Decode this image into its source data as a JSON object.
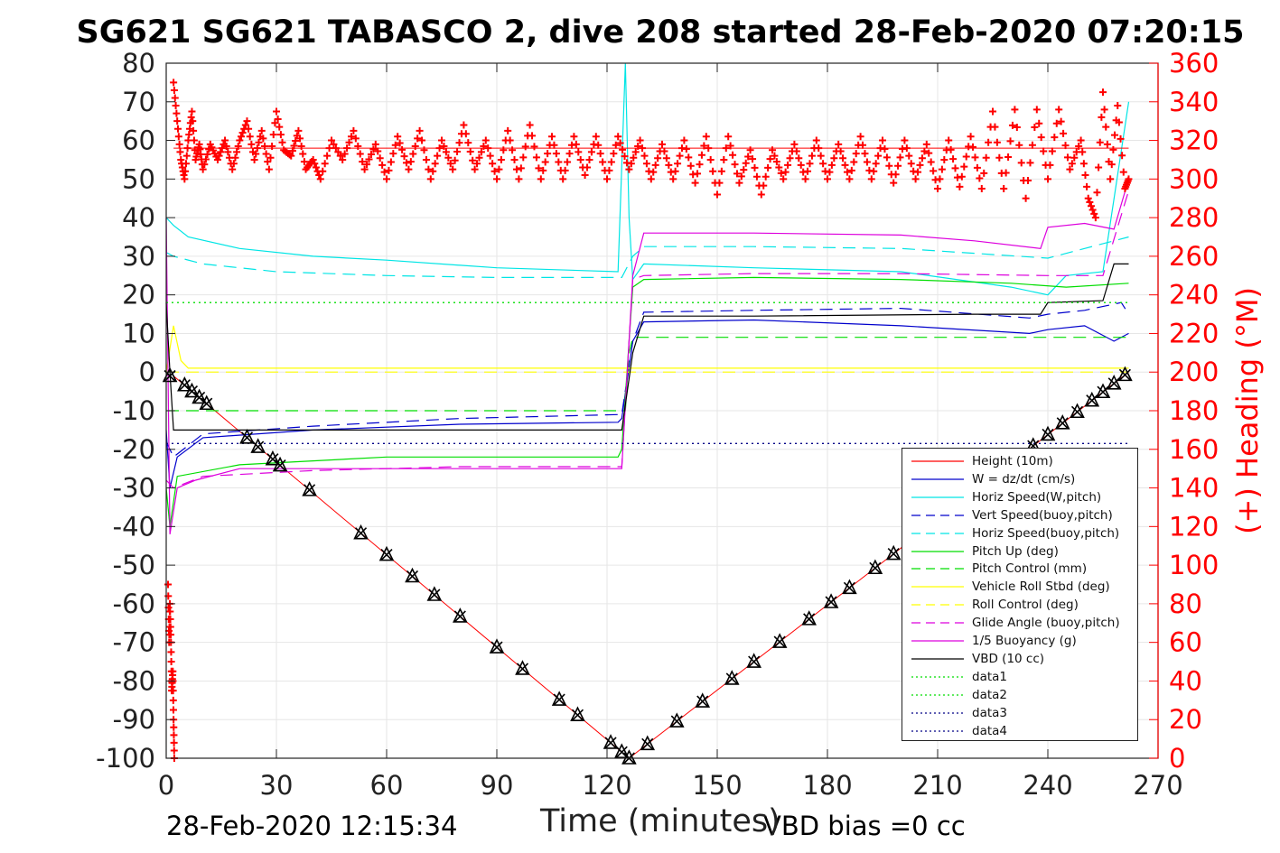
{
  "title": "SG621 SG621 TABASCO 2, dive 208 started 28-Feb-2020 07:20:15",
  "footer_left": "28-Feb-2020 12:15:34",
  "footer_right": "VBD bias =0 cc",
  "colors": {
    "red": "#ff0000",
    "blue": "#0000cc",
    "cyan": "#00e5e5",
    "green": "#00dd00",
    "yellow": "#ffff00",
    "magenta": "#dd00dd",
    "black": "#000000",
    "dark_blue": "#000088"
  },
  "chart_data": {
    "type": "line",
    "xlabel": "Time (minutes)",
    "ylabel": "",
    "y2label": "(+) Heading (°M)",
    "xlim": [
      0,
      270
    ],
    "ylim": [
      -100,
      80
    ],
    "y2lim": [
      0,
      360
    ],
    "xticks": [
      0,
      30,
      60,
      90,
      120,
      150,
      180,
      210,
      240,
      270
    ],
    "yticks": [
      -100,
      -90,
      -80,
      -70,
      -60,
      -50,
      -40,
      -30,
      -20,
      -10,
      0,
      10,
      20,
      30,
      40,
      50,
      60,
      70,
      80
    ],
    "y2ticks": [
      0,
      20,
      40,
      60,
      80,
      100,
      120,
      140,
      160,
      180,
      200,
      220,
      240,
      260,
      280,
      300,
      320,
      340,
      360
    ],
    "grid": true,
    "legend_position": "bottom-right",
    "legend": [
      {
        "label": "Height (10m)",
        "color": "#ff0000",
        "style": "solid"
      },
      {
        "label": "W = dz/dt (cm/s)",
        "color": "#0000cc",
        "style": "solid"
      },
      {
        "label": "Horiz Speed(W,pitch)",
        "color": "#00e5e5",
        "style": "solid"
      },
      {
        "label": "Vert Speed(buoy,pitch)",
        "color": "#0000cc",
        "style": "dashed"
      },
      {
        "label": "Horiz Speed(buoy,pitch)",
        "color": "#00e5e5",
        "style": "dashed"
      },
      {
        "label": "Pitch Up (deg)",
        "color": "#00dd00",
        "style": "solid"
      },
      {
        "label": "Pitch Control (mm)",
        "color": "#00dd00",
        "style": "dashed"
      },
      {
        "label": "Vehicle Roll Stbd (deg)",
        "color": "#ffff00",
        "style": "solid"
      },
      {
        "label": "Roll Control (deg)",
        "color": "#ffff00",
        "style": "dashed"
      },
      {
        "label": "Glide Angle (buoy,pitch)",
        "color": "#dd00dd",
        "style": "dashed"
      },
      {
        "label": "1/5 Buoyancy (g)",
        "color": "#dd00dd",
        "style": "solid"
      },
      {
        "label": "VBD (10 cc)",
        "color": "#000000",
        "style": "solid"
      },
      {
        "label": "data1",
        "color": "#00dd00",
        "style": "dotted"
      },
      {
        "label": "data2",
        "color": "#00dd00",
        "style": "dotted"
      },
      {
        "label": "data3",
        "color": "#000088",
        "style": "dotted"
      },
      {
        "label": "data4",
        "color": "#000088",
        "style": "dotted"
      }
    ],
    "series": [
      {
        "name": "Height (10m)",
        "axis": "left",
        "x": [
          2,
          126,
          262
        ],
        "y": [
          -1,
          -100,
          0
        ]
      },
      {
        "name": "W = dz/dt (cm/s)",
        "axis": "left",
        "x": [
          0,
          1,
          3,
          10,
          40,
          80,
          123,
          124,
          127,
          130,
          160,
          200,
          235,
          240,
          250,
          258,
          262
        ],
        "y": [
          -15,
          -30,
          -22,
          -17,
          -15,
          -13.5,
          -13,
          -12,
          8,
          13,
          13.5,
          12,
          10,
          11,
          12,
          8,
          10
        ]
      },
      {
        "name": "Horiz Speed(W,pitch)",
        "axis": "left",
        "x": [
          0,
          2,
          6,
          20,
          40,
          60,
          90,
          123,
          125,
          126,
          127,
          130,
          160,
          200,
          230,
          240,
          245,
          255,
          262
        ],
        "y": [
          40,
          38,
          35,
          32,
          30,
          29,
          27,
          26,
          80,
          40,
          24,
          28,
          27,
          26,
          22,
          20,
          25,
          26,
          70
        ]
      },
      {
        "name": "Vert Speed(buoy,pitch)",
        "axis": "left",
        "x": [
          0,
          2,
          10,
          40,
          80,
          123,
          124,
          127,
          130,
          160,
          200,
          235,
          240,
          250,
          260,
          262
        ],
        "y": [
          -18,
          -22,
          -16,
          -14,
          -12,
          -11,
          -11,
          8,
          15.5,
          16,
          16.5,
          14,
          15,
          16,
          18,
          15
        ]
      },
      {
        "name": "Horiz Speed(buoy,pitch)",
        "axis": "left",
        "x": [
          0,
          2,
          10,
          30,
          60,
          90,
          123,
          124,
          127,
          130,
          160,
          200,
          240,
          250,
          262
        ],
        "y": [
          31,
          30,
          28,
          26,
          25,
          24.5,
          24.5,
          24.5,
          30,
          32.5,
          32.5,
          32,
          29.5,
          32,
          35
        ]
      },
      {
        "name": "Pitch Up (deg)",
        "axis": "left",
        "x": [
          0,
          1,
          3,
          20,
          60,
          90,
          123,
          124,
          127,
          130,
          160,
          200,
          230,
          245,
          262
        ],
        "y": [
          -30,
          -40,
          -27,
          -24,
          -22,
          -22,
          -22,
          -20,
          22,
          24,
          24.5,
          24,
          23,
          22,
          23
        ]
      },
      {
        "name": "Pitch Control (mm)",
        "axis": "left",
        "x": [
          0,
          5,
          60,
          123,
          124,
          125,
          126,
          127,
          130,
          160,
          200,
          262
        ],
        "y": [
          -10,
          -10,
          -10,
          -10,
          -10,
          -10,
          5,
          9,
          9,
          9,
          9,
          9
        ]
      },
      {
        "name": "Vehicle Roll Stbd (deg)",
        "axis": "left",
        "x": [
          0,
          2,
          4,
          6,
          20,
          40,
          60,
          90,
          120,
          125,
          130,
          160,
          200,
          240,
          262
        ],
        "y": [
          0,
          12,
          3,
          1,
          1,
          1,
          1,
          1,
          1,
          1,
          1,
          1,
          1,
          1,
          1
        ]
      },
      {
        "name": "Roll Control (deg)",
        "axis": "left",
        "x": [
          0,
          262
        ],
        "y": [
          0,
          0
        ]
      },
      {
        "name": "Glide Angle (buoy,pitch)",
        "axis": "left",
        "x": [
          0,
          2,
          10,
          40,
          80,
          123,
          124,
          127,
          130,
          160,
          200,
          240,
          255,
          262
        ],
        "y": [
          -28,
          -30,
          -27,
          -25.5,
          -24.5,
          -24.5,
          -24.5,
          24,
          25,
          25.5,
          25.5,
          25,
          25,
          47
        ]
      },
      {
        "name": "1/5 Buoyancy (g)",
        "axis": "left",
        "x": [
          0,
          1,
          3,
          8,
          20,
          60,
          123,
          124,
          127,
          130,
          160,
          200,
          220,
          238,
          240,
          250,
          258,
          262
        ],
        "y": [
          40,
          -42,
          -30,
          -28,
          -25,
          -25,
          -25,
          -25,
          25,
          36,
          36,
          35.5,
          34,
          32,
          37.5,
          38.5,
          37,
          50
        ]
      },
      {
        "name": "VBD (10 cc)",
        "axis": "left",
        "x": [
          0,
          1,
          2,
          60,
          123,
          124,
          127,
          130,
          160,
          220,
          238,
          240,
          255,
          258,
          262
        ],
        "y": [
          18,
          0,
          -15,
          -15,
          -15,
          -15,
          5,
          14.5,
          14.5,
          15,
          15,
          18,
          18.5,
          28,
          28
        ]
      },
      {
        "name": "data1",
        "axis": "left",
        "x": [
          0,
          262
        ],
        "y": [
          18,
          18
        ]
      },
      {
        "name": "data2",
        "axis": "left",
        "x": [
          0,
          262
        ],
        "y": [
          18,
          18
        ]
      },
      {
        "name": "data3",
        "axis": "left",
        "x": [
          0,
          262
        ],
        "y": [
          -18.5,
          -18.5
        ]
      },
      {
        "name": "data4",
        "axis": "left",
        "x": [
          0,
          262
        ],
        "y": [
          -18.5,
          -18.5
        ]
      },
      {
        "name": "(+) Heading (°M)",
        "axis": "right",
        "marker": "+",
        "mean": 316,
        "x": [
          2,
          3,
          4,
          5,
          6,
          7,
          8,
          9,
          10,
          12,
          14,
          16,
          18,
          20,
          22,
          24,
          26,
          28,
          30,
          32,
          34,
          36,
          38,
          40,
          42,
          45,
          48,
          51,
          54,
          57,
          60,
          63,
          66,
          69,
          72,
          75,
          78,
          81,
          84,
          87,
          90,
          93,
          96,
          99,
          102,
          105,
          108,
          111,
          114,
          117,
          120,
          123,
          126,
          129,
          132,
          135,
          138,
          141,
          144,
          147,
          150,
          153,
          156,
          159,
          162,
          165,
          168,
          171,
          174,
          177,
          180,
          183,
          186,
          189,
          192,
          195,
          198,
          201,
          204,
          207,
          210,
          213,
          216,
          219,
          222,
          225,
          228,
          231,
          234,
          237,
          240,
          243,
          246,
          249,
          251,
          253,
          255,
          257,
          259,
          261,
          262
        ],
        "y": [
          350,
          330,
          310,
          300,
          320,
          335,
          310,
          318,
          305,
          318,
          310,
          320,
          305,
          320,
          330,
          310,
          325,
          305,
          335,
          315,
          312,
          325,
          305,
          310,
          300,
          320,
          310,
          325,
          305,
          318,
          300,
          322,
          305,
          325,
          300,
          320,
          305,
          328,
          305,
          320,
          300,
          325,
          300,
          328,
          300,
          322,
          300,
          322,
          302,
          322,
          300,
          322,
          305,
          320,
          300,
          318,
          300,
          320,
          298,
          322,
          292,
          322,
          298,
          315,
          292,
          315,
          300,
          318,
          300,
          320,
          300,
          318,
          300,
          322,
          300,
          320,
          298,
          320,
          300,
          318,
          295,
          320,
          296,
          322,
          295,
          335,
          295,
          336,
          290,
          336,
          300,
          336,
          305,
          320,
          290,
          280,
          345,
          300,
          338,
          295,
          300
        ]
      },
      {
        "name": "start heading",
        "axis": "right",
        "marker": "+",
        "x": [
          0.5,
          0.8,
          1,
          1.3,
          1.5,
          1.8,
          2,
          2.2
        ],
        "y": [
          90,
          60,
          80,
          60,
          35,
          45,
          20,
          0
        ]
      }
    ],
    "markers": [
      {
        "name": "dive triangles",
        "symbol": "triangle-x",
        "x": [
          1,
          5,
          7,
          9,
          11,
          22,
          25,
          29,
          31,
          39,
          53,
          60,
          67,
          73,
          80,
          90,
          97,
          107,
          112,
          121,
          124,
          126,
          131,
          139,
          146,
          154,
          160,
          167,
          175,
          181,
          186,
          193,
          198,
          215,
          232,
          236,
          240,
          244,
          248,
          252,
          255,
          258,
          261
        ]
      }
    ]
  }
}
